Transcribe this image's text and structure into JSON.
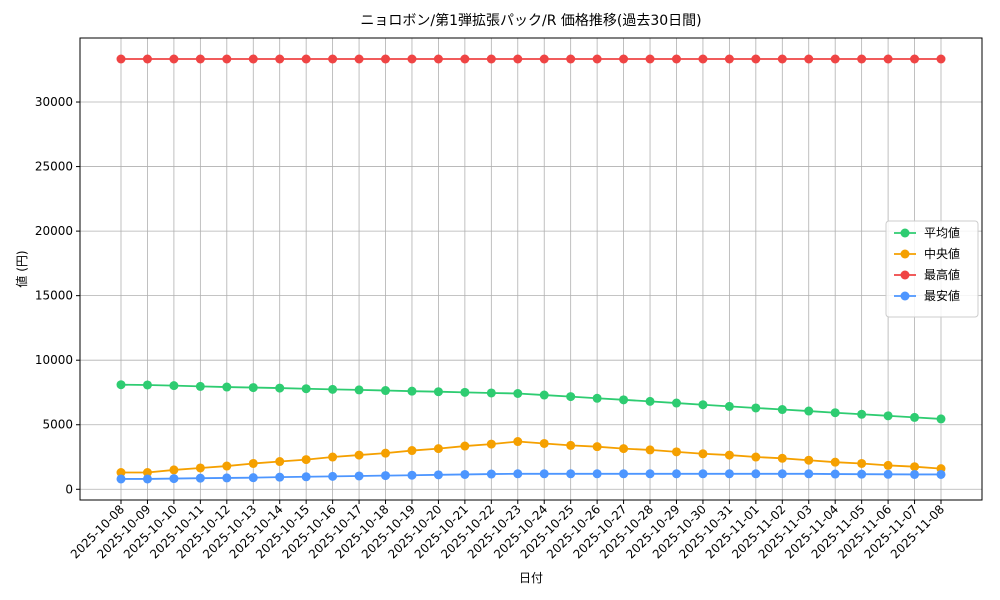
{
  "chart_data": {
    "type": "line",
    "title": "ニョロボン/第1弾拡張パック/R 価格推移(過去30日間)",
    "x_label": "日付",
    "y_label": "値 (円)",
    "categories": [
      "2025-10-08",
      "2025-10-09",
      "2025-10-10",
      "2025-10-11",
      "2025-10-12",
      "2025-10-13",
      "2025-10-14",
      "2025-10-15",
      "2025-10-16",
      "2025-10-17",
      "2025-10-18",
      "2025-10-19",
      "2025-10-20",
      "2025-10-21",
      "2025-10-22",
      "2025-10-23",
      "2025-10-24",
      "2025-10-25",
      "2025-10-26",
      "2025-10-27",
      "2025-10-28",
      "2025-10-29",
      "2025-10-30",
      "2025-10-31",
      "2025-11-01",
      "2025-11-02",
      "2025-11-03",
      "2025-11-04",
      "2025-11-05",
      "2025-11-06",
      "2025-11-07",
      "2025-11-08"
    ],
    "series": [
      {
        "name": "平均値",
        "color": "#2ecc71",
        "values": [
          8100,
          8080,
          8030,
          7970,
          7920,
          7880,
          7840,
          7790,
          7740,
          7700,
          7650,
          7600,
          7560,
          7510,
          7460,
          7420,
          7300,
          7180,
          7050,
          6930,
          6810,
          6680,
          6550,
          6420,
          6300,
          6180,
          6060,
          5930,
          5810,
          5690,
          5570,
          5450
        ]
      },
      {
        "name": "中央値",
        "color": "#f5a000",
        "values": [
          1300,
          1300,
          1500,
          1650,
          1800,
          2000,
          2150,
          2300,
          2500,
          2650,
          2800,
          3000,
          3150,
          3350,
          3500,
          3700,
          3550,
          3400,
          3300,
          3150,
          3050,
          2900,
          2750,
          2650,
          2500,
          2400,
          2250,
          2100,
          2000,
          1850,
          1750,
          1600
        ]
      },
      {
        "name": "最高値",
        "color": "#ef4444",
        "values": [
          33333,
          33333,
          33333,
          33333,
          33333,
          33333,
          33333,
          33333,
          33333,
          33333,
          33333,
          33333,
          33333,
          33333,
          33333,
          33333,
          33333,
          33333,
          33333,
          33333,
          33333,
          33333,
          33333,
          33333,
          33333,
          33333,
          33333,
          33333,
          33333,
          33333,
          33333,
          33333
        ]
      },
      {
        "name": "最安値",
        "color": "#4d96ff",
        "values": [
          800,
          800,
          830,
          860,
          880,
          900,
          940,
          970,
          1000,
          1030,
          1060,
          1090,
          1120,
          1150,
          1180,
          1200,
          1200,
          1200,
          1200,
          1200,
          1200,
          1200,
          1200,
          1200,
          1200,
          1200,
          1200,
          1180,
          1170,
          1160,
          1150,
          1150
        ]
      }
    ],
    "ylim": [
      -830,
      34960
    ],
    "yticks": [
      0,
      5000,
      10000,
      15000,
      20000,
      25000,
      30000
    ],
    "grid": true,
    "legend": "center right"
  }
}
